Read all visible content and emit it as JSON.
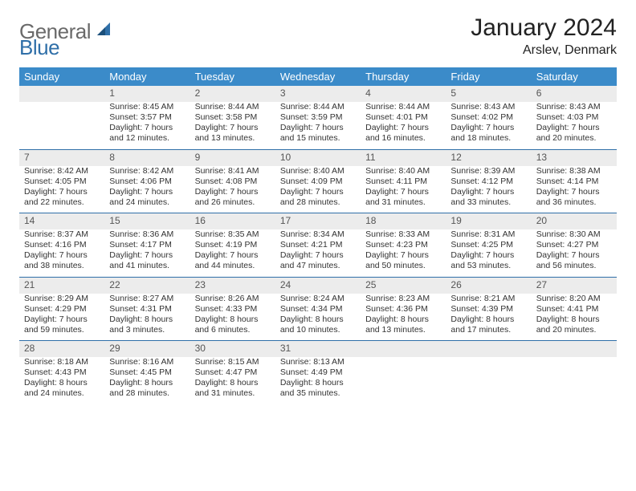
{
  "brand": {
    "part1": "General",
    "part2": "Blue"
  },
  "title": "January 2024",
  "location": "Arslev, Denmark",
  "colors": {
    "header_bg": "#3b8bc9",
    "rule": "#2f6fa8",
    "daynum_bg": "#ececec",
    "text": "#333333",
    "logo_general": "#6a6a6a",
    "logo_blue": "#2f6fa8"
  },
  "weekdays": [
    "Sunday",
    "Monday",
    "Tuesday",
    "Wednesday",
    "Thursday",
    "Friday",
    "Saturday"
  ],
  "weeks": [
    [
      null,
      {
        "n": "1",
        "sr": "8:45 AM",
        "ss": "3:57 PM",
        "dl": "7 hours and 12 minutes."
      },
      {
        "n": "2",
        "sr": "8:44 AM",
        "ss": "3:58 PM",
        "dl": "7 hours and 13 minutes."
      },
      {
        "n": "3",
        "sr": "8:44 AM",
        "ss": "3:59 PM",
        "dl": "7 hours and 15 minutes."
      },
      {
        "n": "4",
        "sr": "8:44 AM",
        "ss": "4:01 PM",
        "dl": "7 hours and 16 minutes."
      },
      {
        "n": "5",
        "sr": "8:43 AM",
        "ss": "4:02 PM",
        "dl": "7 hours and 18 minutes."
      },
      {
        "n": "6",
        "sr": "8:43 AM",
        "ss": "4:03 PM",
        "dl": "7 hours and 20 minutes."
      }
    ],
    [
      {
        "n": "7",
        "sr": "8:42 AM",
        "ss": "4:05 PM",
        "dl": "7 hours and 22 minutes."
      },
      {
        "n": "8",
        "sr": "8:42 AM",
        "ss": "4:06 PM",
        "dl": "7 hours and 24 minutes."
      },
      {
        "n": "9",
        "sr": "8:41 AM",
        "ss": "4:08 PM",
        "dl": "7 hours and 26 minutes."
      },
      {
        "n": "10",
        "sr": "8:40 AM",
        "ss": "4:09 PM",
        "dl": "7 hours and 28 minutes."
      },
      {
        "n": "11",
        "sr": "8:40 AM",
        "ss": "4:11 PM",
        "dl": "7 hours and 31 minutes."
      },
      {
        "n": "12",
        "sr": "8:39 AM",
        "ss": "4:12 PM",
        "dl": "7 hours and 33 minutes."
      },
      {
        "n": "13",
        "sr": "8:38 AM",
        "ss": "4:14 PM",
        "dl": "7 hours and 36 minutes."
      }
    ],
    [
      {
        "n": "14",
        "sr": "8:37 AM",
        "ss": "4:16 PM",
        "dl": "7 hours and 38 minutes."
      },
      {
        "n": "15",
        "sr": "8:36 AM",
        "ss": "4:17 PM",
        "dl": "7 hours and 41 minutes."
      },
      {
        "n": "16",
        "sr": "8:35 AM",
        "ss": "4:19 PM",
        "dl": "7 hours and 44 minutes."
      },
      {
        "n": "17",
        "sr": "8:34 AM",
        "ss": "4:21 PM",
        "dl": "7 hours and 47 minutes."
      },
      {
        "n": "18",
        "sr": "8:33 AM",
        "ss": "4:23 PM",
        "dl": "7 hours and 50 minutes."
      },
      {
        "n": "19",
        "sr": "8:31 AM",
        "ss": "4:25 PM",
        "dl": "7 hours and 53 minutes."
      },
      {
        "n": "20",
        "sr": "8:30 AM",
        "ss": "4:27 PM",
        "dl": "7 hours and 56 minutes."
      }
    ],
    [
      {
        "n": "21",
        "sr": "8:29 AM",
        "ss": "4:29 PM",
        "dl": "7 hours and 59 minutes."
      },
      {
        "n": "22",
        "sr": "8:27 AM",
        "ss": "4:31 PM",
        "dl": "8 hours and 3 minutes."
      },
      {
        "n": "23",
        "sr": "8:26 AM",
        "ss": "4:33 PM",
        "dl": "8 hours and 6 minutes."
      },
      {
        "n": "24",
        "sr": "8:24 AM",
        "ss": "4:34 PM",
        "dl": "8 hours and 10 minutes."
      },
      {
        "n": "25",
        "sr": "8:23 AM",
        "ss": "4:36 PM",
        "dl": "8 hours and 13 minutes."
      },
      {
        "n": "26",
        "sr": "8:21 AM",
        "ss": "4:39 PM",
        "dl": "8 hours and 17 minutes."
      },
      {
        "n": "27",
        "sr": "8:20 AM",
        "ss": "4:41 PM",
        "dl": "8 hours and 20 minutes."
      }
    ],
    [
      {
        "n": "28",
        "sr": "8:18 AM",
        "ss": "4:43 PM",
        "dl": "8 hours and 24 minutes."
      },
      {
        "n": "29",
        "sr": "8:16 AM",
        "ss": "4:45 PM",
        "dl": "8 hours and 28 minutes."
      },
      {
        "n": "30",
        "sr": "8:15 AM",
        "ss": "4:47 PM",
        "dl": "8 hours and 31 minutes."
      },
      {
        "n": "31",
        "sr": "8:13 AM",
        "ss": "4:49 PM",
        "dl": "8 hours and 35 minutes."
      },
      null,
      null,
      null
    ]
  ],
  "labels": {
    "sunrise": "Sunrise:",
    "sunset": "Sunset:",
    "daylight": "Daylight:"
  }
}
